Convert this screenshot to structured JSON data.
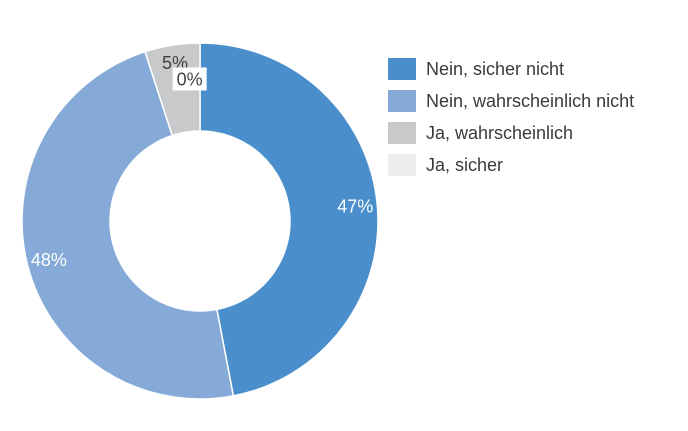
{
  "chart_data": {
    "type": "pie",
    "subtype": "donut",
    "categories": [
      "Nein, sicher nicht",
      "Nein, wahrscheinlich nicht",
      "Ja, wahrscheinlich",
      "Ja, sicher"
    ],
    "values": [
      47,
      48,
      5,
      0
    ],
    "data_labels": [
      "47%",
      "48%",
      "5%",
      "0%"
    ],
    "colors": [
      "#4a8fcc",
      "#86aad8",
      "#c8c9cb",
      "#ececec"
    ],
    "label_colors": [
      "#ffffff",
      "#ffffff",
      "#404040",
      "#404040"
    ],
    "legend": {
      "placement": "right",
      "entries": [
        "Nein, sicher nicht",
        "Nein, wahrscheinlich nicht",
        "Ja, wahrscheinlich",
        "Ja, sicher"
      ]
    }
  }
}
